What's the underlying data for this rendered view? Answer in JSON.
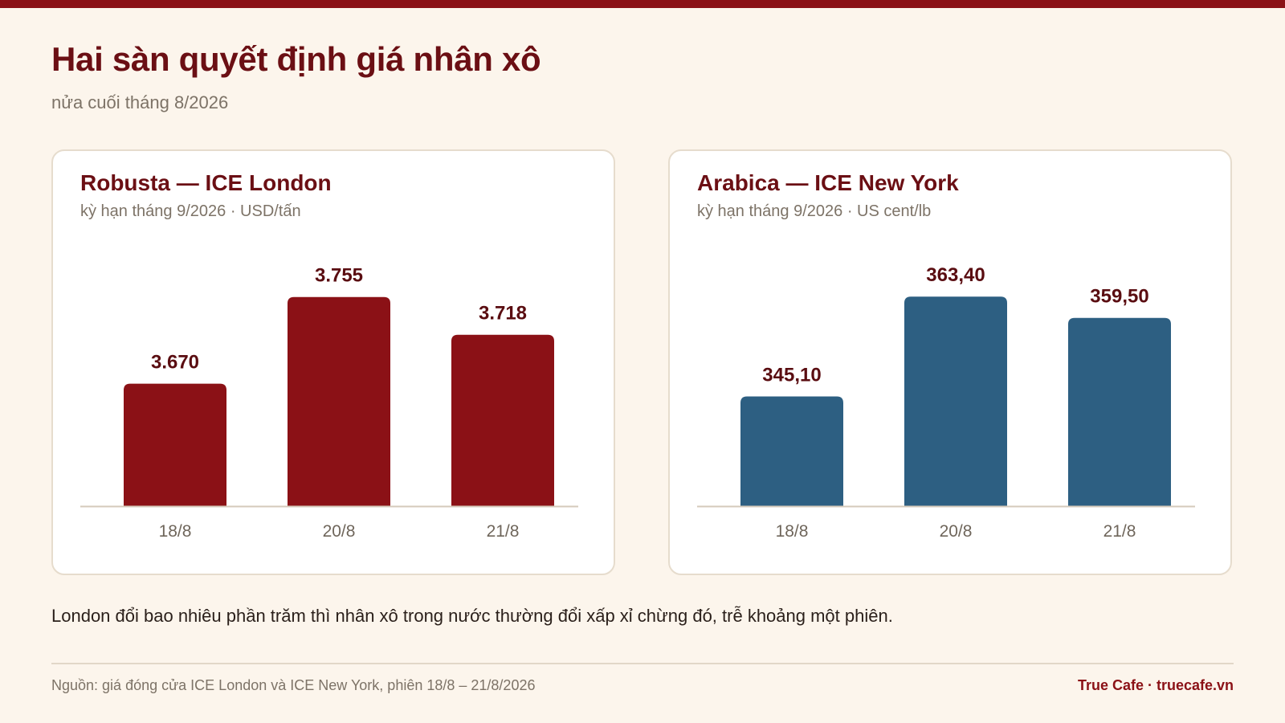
{
  "header": {
    "title": "Hai sàn quyết định giá nhân xô",
    "subtitle": "nửa cuối tháng 8/2026"
  },
  "chart_data": [
    {
      "type": "bar",
      "title": "Robusta — ICE London",
      "subtitle": "kỳ hạn tháng 9/2026 · USD/tấn",
      "categories": [
        "18/8",
        "20/8",
        "21/8"
      ],
      "values": [
        3670,
        3755,
        3718
      ],
      "value_labels": [
        "3.670",
        "3.755",
        "3.718"
      ],
      "ylim": [
        3550,
        3780
      ],
      "grid": false,
      "color": "#8b1116"
    },
    {
      "type": "bar",
      "title": "Arabica — ICE New York",
      "subtitle": "kỳ hạn tháng 9/2026 · US cent/lb",
      "categories": [
        "18/8",
        "20/8",
        "21/8"
      ],
      "values": [
        345.1,
        363.4,
        359.5
      ],
      "value_labels": [
        "345,10",
        "363,40",
        "359,50"
      ],
      "ylim": [
        325,
        368
      ],
      "grid": false,
      "color": "#2d5f82"
    }
  ],
  "note": "London đổi bao nhiêu phần trăm thì nhân xô trong nước thường đổi xấp xỉ chừng đó, trễ khoảng một phiên.",
  "footer": {
    "source": "Nguồn: giá đóng cửa ICE London và ICE New York, phiên 18/8 – 21/8/2026",
    "brand": "True Cafe · truecafe.vn"
  },
  "colors": {
    "accent": "#8b1116",
    "title": "#6b0f14",
    "arabica": "#2d5f82",
    "background": "#fcf5ec"
  }
}
